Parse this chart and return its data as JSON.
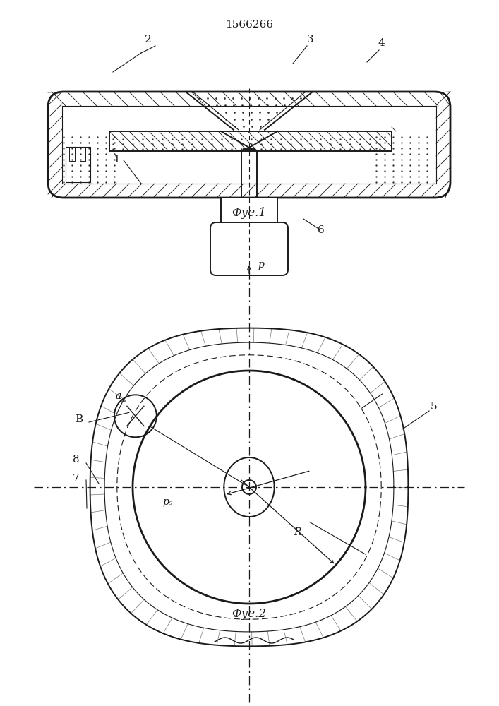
{
  "title": "1566266",
  "fig1_caption": "Φуе.1",
  "fig2_caption": "Φуе.2",
  "bg_color": "#ffffff",
  "lc": "#1a1a1a"
}
